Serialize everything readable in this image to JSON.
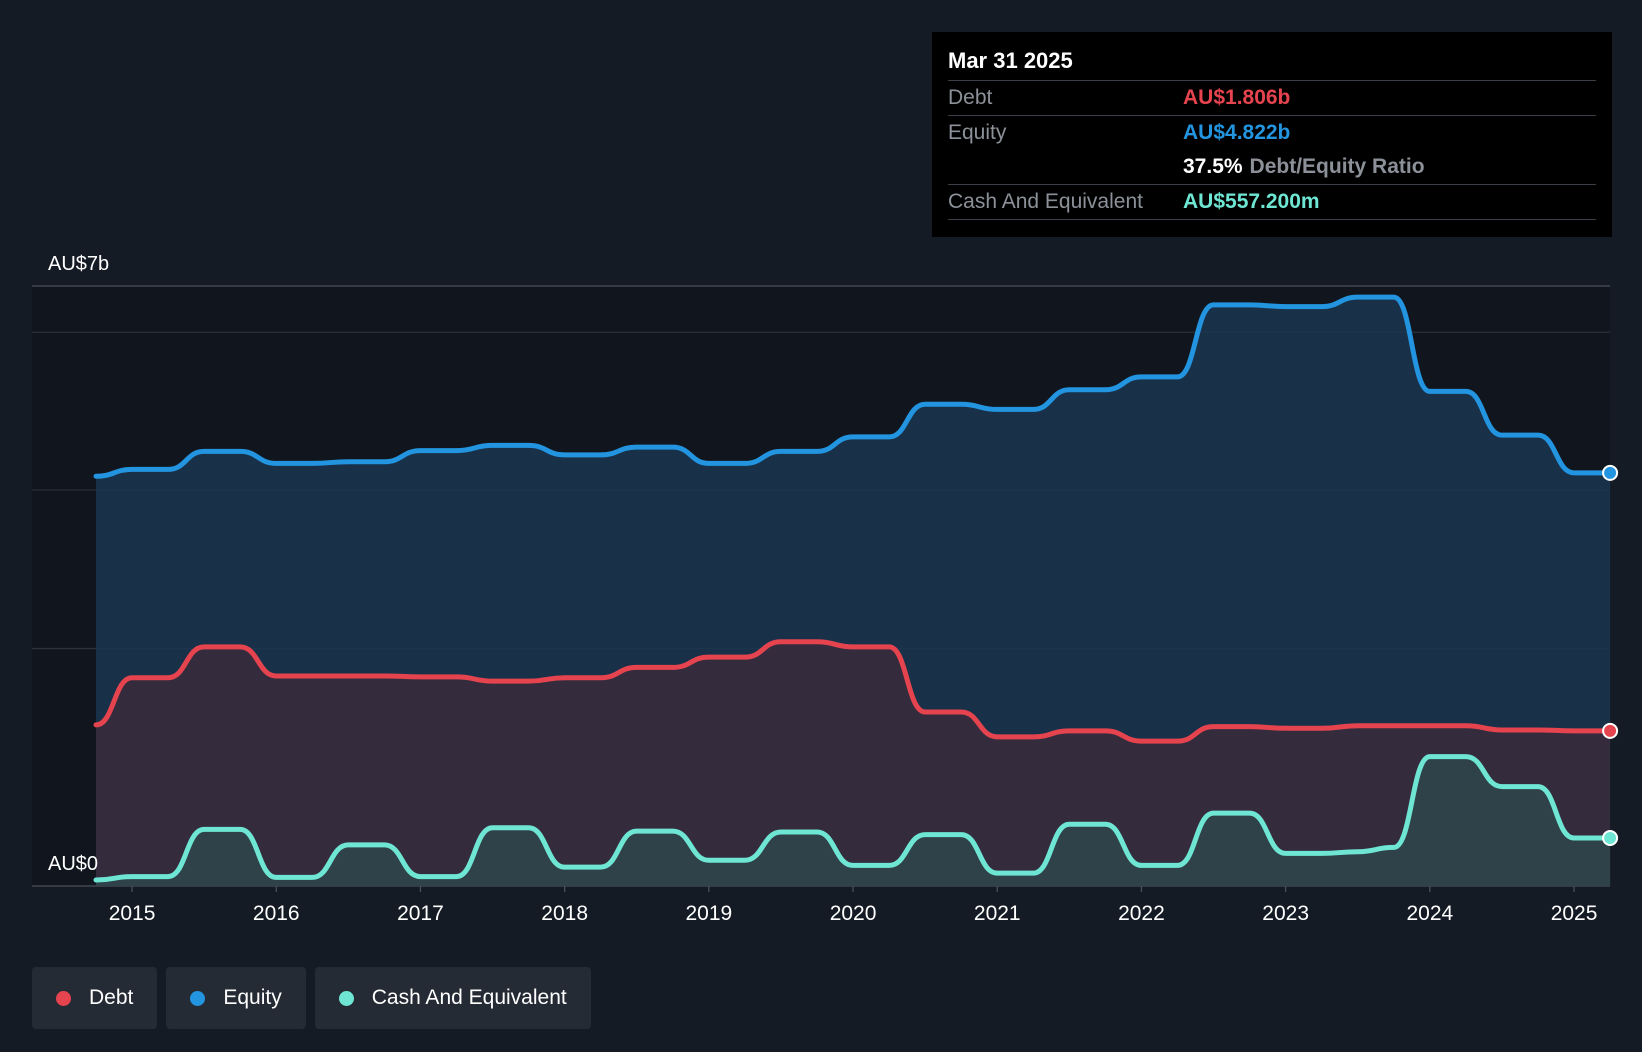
{
  "tooltip": {
    "date": "Mar 31 2025",
    "debt_label": "Debt",
    "debt_value": "AU$1.806b",
    "equity_label": "Equity",
    "equity_value": "AU$4.822b",
    "ratio_value": "37.5%",
    "ratio_label": "Debt/Equity Ratio",
    "cash_label": "Cash And Equivalent",
    "cash_value": "AU$557.200m"
  },
  "legend": {
    "debt": "Debt",
    "equity": "Equity",
    "cash": "Cash And Equivalent"
  },
  "colors": {
    "debt": "#e5444f",
    "equity": "#2394df",
    "cash": "#6ee6d3",
    "background": "#151b24"
  },
  "chart_data": {
    "type": "area",
    "y_top_label": "AU$7b",
    "y_bottom_label": "AU$0",
    "ylim": [
      0,
      7
    ],
    "xlim": [
      2014.75,
      2025.25
    ],
    "x_ticks": [
      "2015",
      "2016",
      "2017",
      "2018",
      "2019",
      "2020",
      "2021",
      "2022",
      "2023",
      "2024",
      "2025"
    ],
    "series": [
      {
        "name": "Equity",
        "key": "equity",
        "points": [
          [
            2014.75,
            4.78
          ],
          [
            2015.0,
            4.86
          ],
          [
            2015.25,
            4.86
          ],
          [
            2015.5,
            5.07
          ],
          [
            2015.75,
            5.07
          ],
          [
            2016.0,
            4.93
          ],
          [
            2016.25,
            4.93
          ],
          [
            2016.5,
            4.95
          ],
          [
            2016.75,
            4.95
          ],
          [
            2017.0,
            5.08
          ],
          [
            2017.25,
            5.08
          ],
          [
            2017.5,
            5.14
          ],
          [
            2017.75,
            5.14
          ],
          [
            2018.0,
            5.03
          ],
          [
            2018.25,
            5.03
          ],
          [
            2018.5,
            5.12
          ],
          [
            2018.75,
            5.12
          ],
          [
            2019.0,
            4.93
          ],
          [
            2019.25,
            4.93
          ],
          [
            2019.5,
            5.07
          ],
          [
            2019.75,
            5.07
          ],
          [
            2020.0,
            5.24
          ],
          [
            2020.25,
            5.24
          ],
          [
            2020.5,
            5.62
          ],
          [
            2020.75,
            5.62
          ],
          [
            2021.0,
            5.56
          ],
          [
            2021.25,
            5.56
          ],
          [
            2021.5,
            5.79
          ],
          [
            2021.75,
            5.79
          ],
          [
            2022.0,
            5.94
          ],
          [
            2022.25,
            5.94
          ],
          [
            2022.5,
            6.78
          ],
          [
            2022.75,
            6.78
          ],
          [
            2023.0,
            6.76
          ],
          [
            2023.25,
            6.76
          ],
          [
            2023.5,
            6.87
          ],
          [
            2023.75,
            6.87
          ],
          [
            2024.0,
            5.77
          ],
          [
            2024.25,
            5.77
          ],
          [
            2024.5,
            5.26
          ],
          [
            2024.75,
            5.26
          ],
          [
            2025.0,
            4.82
          ],
          [
            2025.25,
            4.82
          ]
        ]
      },
      {
        "name": "Debt",
        "key": "debt",
        "points": [
          [
            2014.75,
            1.88
          ],
          [
            2015.0,
            2.43
          ],
          [
            2015.25,
            2.43
          ],
          [
            2015.5,
            2.79
          ],
          [
            2015.75,
            2.79
          ],
          [
            2016.0,
            2.45
          ],
          [
            2016.25,
            2.45
          ],
          [
            2016.5,
            2.45
          ],
          [
            2016.75,
            2.45
          ],
          [
            2017.0,
            2.44
          ],
          [
            2017.25,
            2.44
          ],
          [
            2017.5,
            2.39
          ],
          [
            2017.75,
            2.39
          ],
          [
            2018.0,
            2.43
          ],
          [
            2018.25,
            2.43
          ],
          [
            2018.5,
            2.55
          ],
          [
            2018.75,
            2.55
          ],
          [
            2019.0,
            2.67
          ],
          [
            2019.25,
            2.67
          ],
          [
            2019.5,
            2.85
          ],
          [
            2019.75,
            2.85
          ],
          [
            2020.0,
            2.79
          ],
          [
            2020.25,
            2.79
          ],
          [
            2020.5,
            2.03
          ],
          [
            2020.75,
            2.03
          ],
          [
            2021.0,
            1.74
          ],
          [
            2021.25,
            1.74
          ],
          [
            2021.5,
            1.81
          ],
          [
            2021.75,
            1.81
          ],
          [
            2022.0,
            1.69
          ],
          [
            2022.25,
            1.69
          ],
          [
            2022.5,
            1.86
          ],
          [
            2022.75,
            1.86
          ],
          [
            2023.0,
            1.84
          ],
          [
            2023.25,
            1.84
          ],
          [
            2023.5,
            1.87
          ],
          [
            2023.75,
            1.87
          ],
          [
            2024.0,
            1.87
          ],
          [
            2024.25,
            1.87
          ],
          [
            2024.5,
            1.82
          ],
          [
            2024.75,
            1.82
          ],
          [
            2025.0,
            1.81
          ],
          [
            2025.25,
            1.81
          ]
        ]
      },
      {
        "name": "Cash And Equivalent",
        "key": "cash",
        "points": [
          [
            2014.75,
            0.07
          ],
          [
            2015.0,
            0.11
          ],
          [
            2015.25,
            0.11
          ],
          [
            2015.5,
            0.66
          ],
          [
            2015.75,
            0.66
          ],
          [
            2016.0,
            0.1
          ],
          [
            2016.25,
            0.1
          ],
          [
            2016.5,
            0.48
          ],
          [
            2016.75,
            0.48
          ],
          [
            2017.0,
            0.11
          ],
          [
            2017.25,
            0.11
          ],
          [
            2017.5,
            0.68
          ],
          [
            2017.75,
            0.68
          ],
          [
            2018.0,
            0.22
          ],
          [
            2018.25,
            0.22
          ],
          [
            2018.5,
            0.64
          ],
          [
            2018.75,
            0.64
          ],
          [
            2019.0,
            0.3
          ],
          [
            2019.25,
            0.3
          ],
          [
            2019.5,
            0.63
          ],
          [
            2019.75,
            0.63
          ],
          [
            2020.0,
            0.24
          ],
          [
            2020.25,
            0.24
          ],
          [
            2020.5,
            0.6
          ],
          [
            2020.75,
            0.6
          ],
          [
            2021.0,
            0.15
          ],
          [
            2021.25,
            0.15
          ],
          [
            2021.5,
            0.72
          ],
          [
            2021.75,
            0.72
          ],
          [
            2022.0,
            0.24
          ],
          [
            2022.25,
            0.24
          ],
          [
            2022.5,
            0.85
          ],
          [
            2022.75,
            0.85
          ],
          [
            2023.0,
            0.38
          ],
          [
            2023.25,
            0.38
          ],
          [
            2023.5,
            0.4
          ],
          [
            2023.75,
            0.45
          ],
          [
            2024.0,
            1.51
          ],
          [
            2024.25,
            1.51
          ],
          [
            2024.5,
            1.16
          ],
          [
            2024.75,
            1.16
          ],
          [
            2025.0,
            0.56
          ],
          [
            2025.25,
            0.56
          ]
        ]
      }
    ]
  }
}
